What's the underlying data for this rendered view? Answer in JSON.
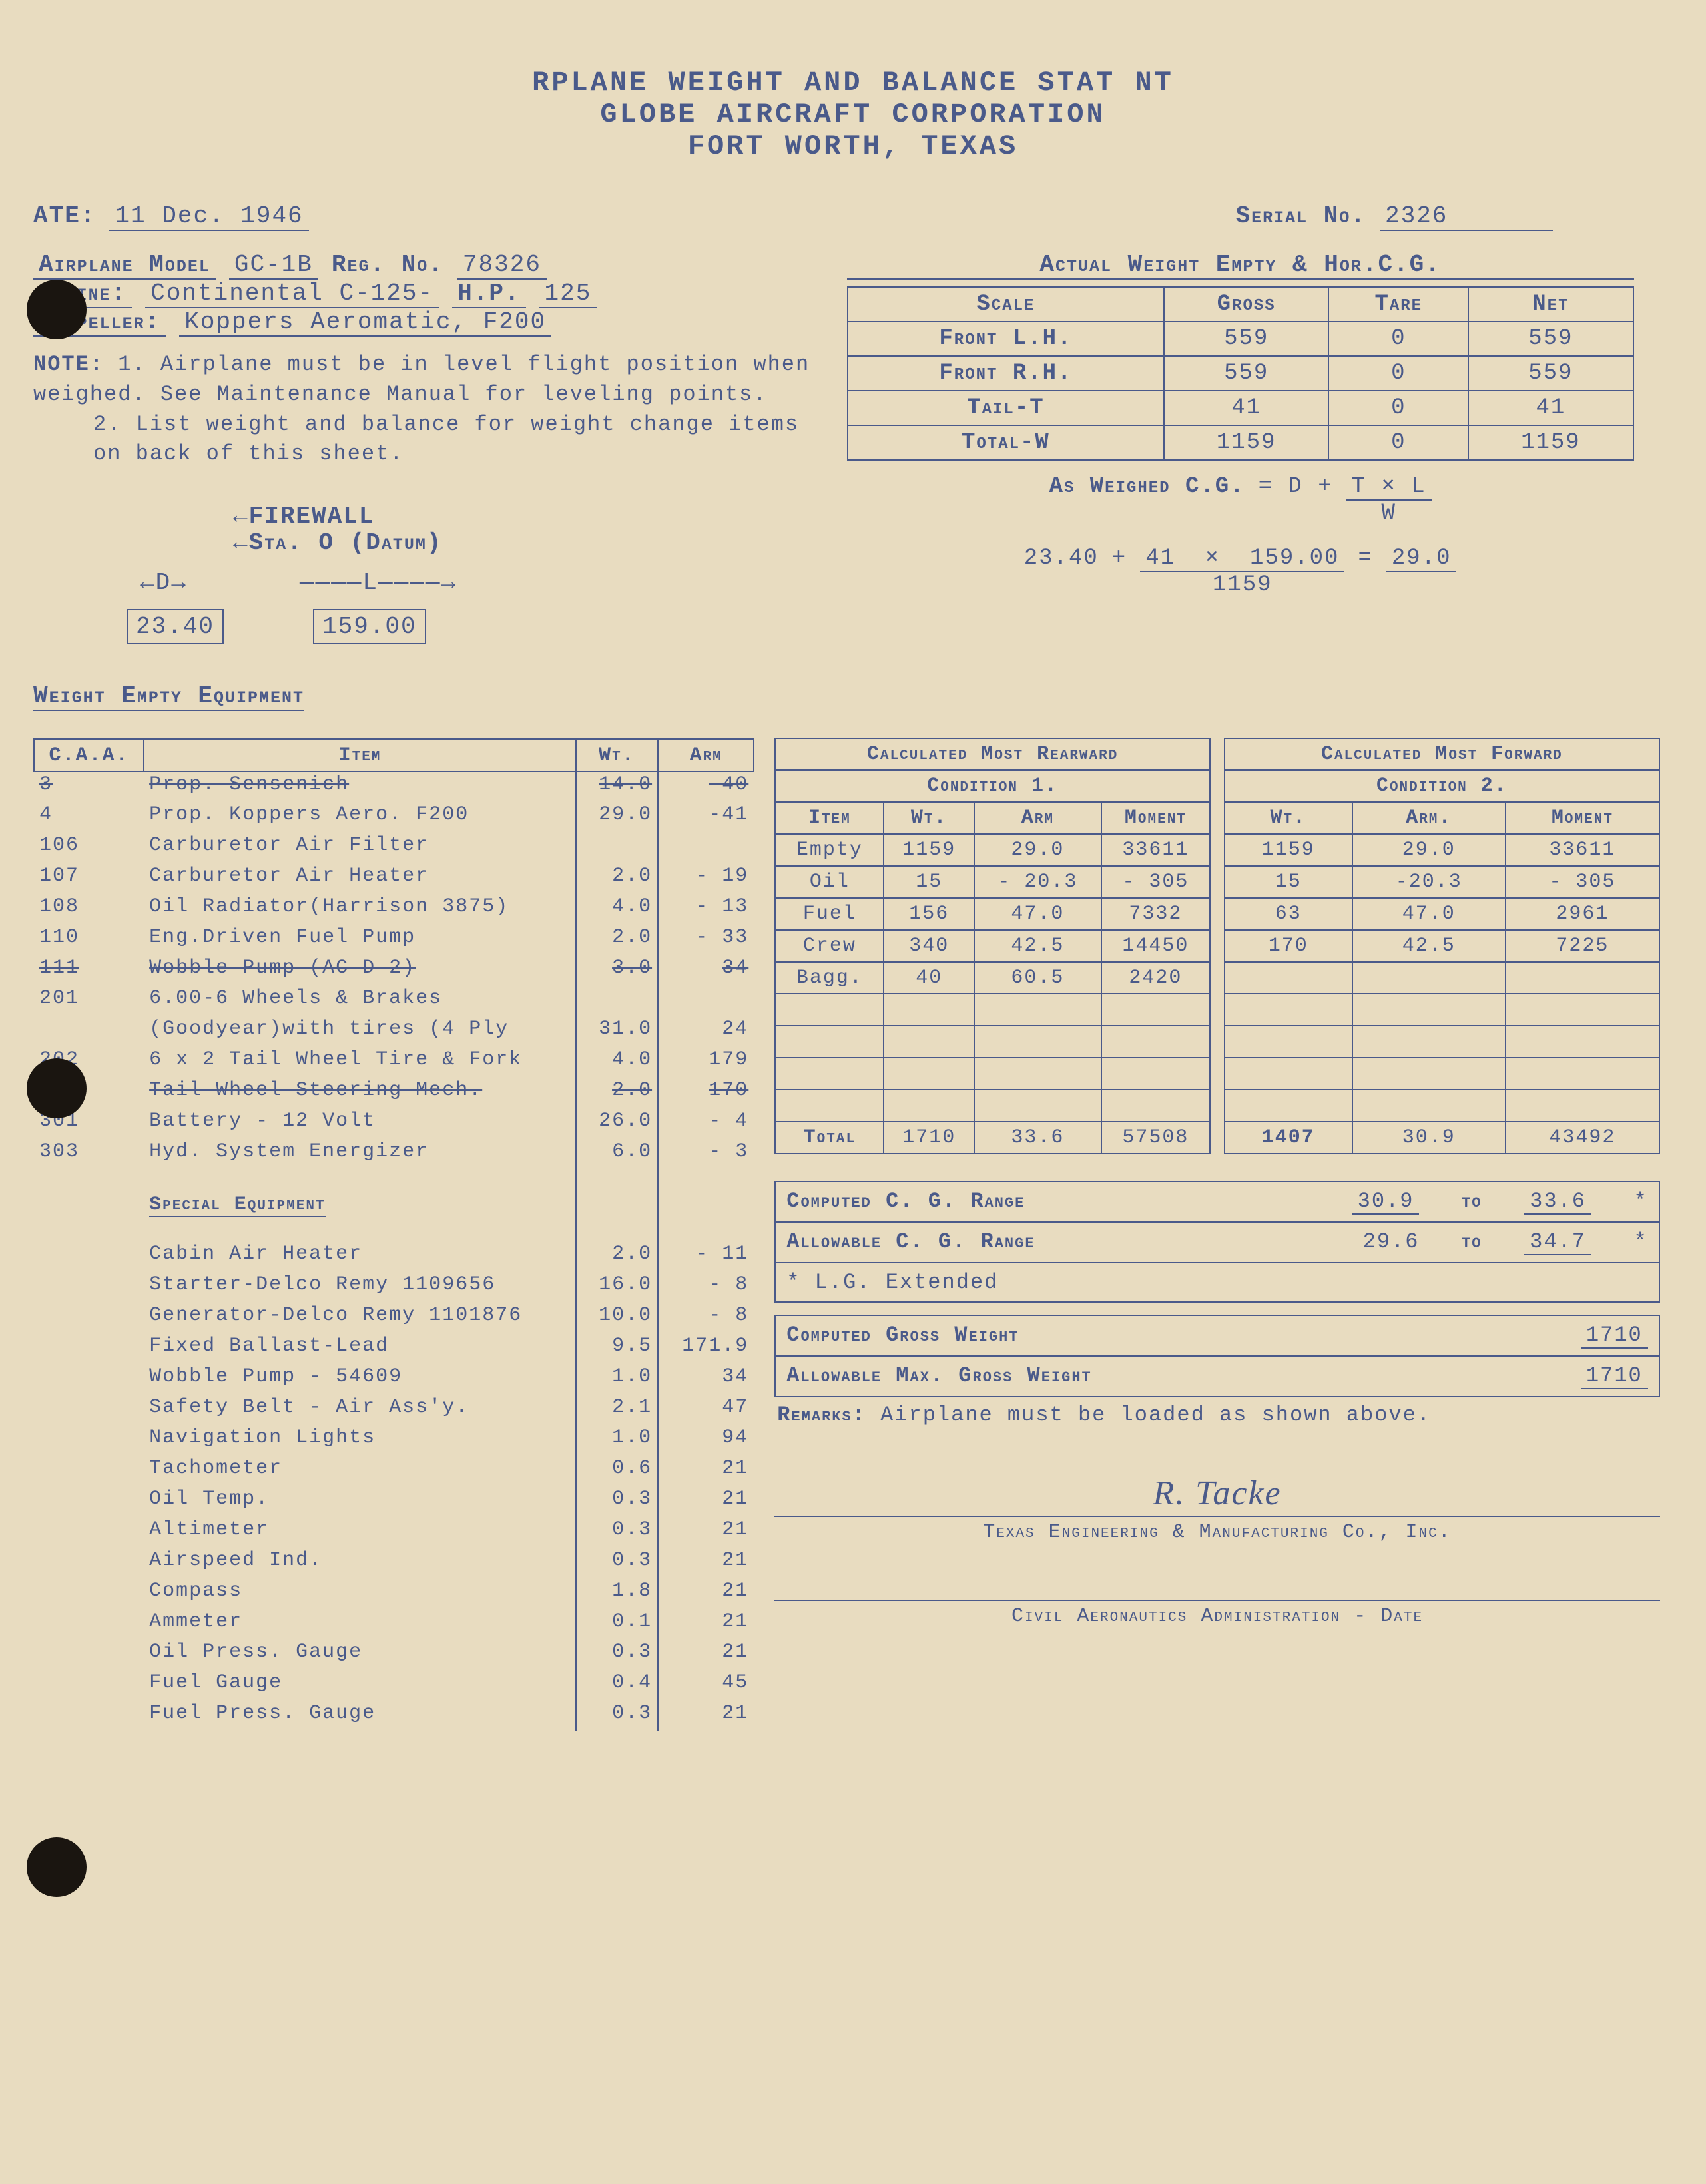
{
  "header": {
    "l1": "RPLANE WEIGHT AND BALANCE STAT   NT",
    "l2": "GLOBE AIRCRAFT CORPORATION",
    "l3": "FORT WORTH, TEXAS"
  },
  "top": {
    "date_label": "ATE:",
    "date_val": "11 Dec. 1946",
    "serial_label": "Serial No.",
    "serial_val": "2326",
    "model_label": "Airplane Model",
    "model_val": "GC-1B",
    "reg_label": "Reg. No.",
    "reg_val": "78326",
    "engine_label": "Engine:",
    "engine_val": "Continental C-125-",
    "hp_label": "H.P.",
    "hp_val": "125",
    "prop_label": "Propeller:",
    "prop_val": "Koppers Aeromatic, F200"
  },
  "notes": {
    "hdr": "NOTE:",
    "n1": "1. Airplane must be in level flight position when weighed. See Maintenance Manual for leveling points.",
    "n2": "2. List weight and balance for weight change items on back of this sheet."
  },
  "diagram": {
    "firewall": "FIREWALL",
    "datum": "Sta. O (Datum)",
    "d_label": "D",
    "l_label": "L",
    "d_val": "23.40",
    "l_val": "159.00"
  },
  "weight_table": {
    "title": "Actual Weight Empty & Hor.C.G.",
    "cols": [
      "Scale",
      "Gross",
      "Tare",
      "Net"
    ],
    "rows": [
      [
        "Front L.H.",
        "559",
        "0",
        "559"
      ],
      [
        "Front R.H.",
        "559",
        "0",
        "559"
      ],
      [
        "Tail-T",
        "41",
        "0",
        "41"
      ],
      [
        "Total-W",
        "1159",
        "0",
        "1159"
      ]
    ]
  },
  "cg_formula": {
    "label": "As Weighed C.G.",
    "eq": "= D +",
    "num": "T × L",
    "den": "W",
    "calc_d": "23.40",
    "calc_t": "41",
    "calc_l": "159.00",
    "calc_w": "1159",
    "result": "29.0"
  },
  "equip_title": "Weight Empty Equipment",
  "equip_cols": {
    "caa": "C.A.A.",
    "item": "Item",
    "wt": "Wt.",
    "arm": "Arm"
  },
  "equip": [
    {
      "caa": "3",
      "item": "Prop. Sensenich",
      "wt": "14.0",
      "arm": "-40",
      "struck": true
    },
    {
      "caa": "4",
      "item": "Prop. Koppers Aero. F200",
      "wt": "29.0",
      "arm": "-41"
    },
    {
      "caa": "106",
      "item": "Carburetor Air Filter",
      "wt": "",
      "arm": ""
    },
    {
      "caa": "107",
      "item": "Carburetor Air Heater",
      "wt": "2.0",
      "arm": "- 19"
    },
    {
      "caa": "108",
      "item": "Oil Radiator(Harrison 3875)",
      "wt": "4.0",
      "arm": "- 13"
    },
    {
      "caa": "110",
      "item": "Eng.Driven Fuel Pump",
      "wt": "2.0",
      "arm": "- 33"
    },
    {
      "caa": "111",
      "item": "Wobble Pump (AC-D-2)",
      "wt": "3.0",
      "arm": "34",
      "struck": true
    },
    {
      "caa": "201",
      "item": "6.00-6 Wheels & Brakes",
      "wt": "",
      "arm": ""
    },
    {
      "caa": "",
      "item": "(Goodyear)with tires (4 Ply",
      "wt": "31.0",
      "arm": "24"
    },
    {
      "caa": "202",
      "item": "6 x 2 Tail Wheel Tire & Fork",
      "wt": "4.0",
      "arm": "179"
    },
    {
      "caa": "203",
      "item": "Tail Wheel Steering Mech.",
      "wt": "2.0",
      "arm": "170",
      "struck": true
    },
    {
      "caa": "301",
      "item": "Battery - 12 Volt",
      "wt": "26.0",
      "arm": "- 4"
    },
    {
      "caa": "303",
      "item": "Hyd. System Energizer",
      "wt": "6.0",
      "arm": "- 3"
    }
  ],
  "special_title": "Special Equipment",
  "special": [
    {
      "item": "Cabin Air Heater",
      "wt": "2.0",
      "arm": "- 11"
    },
    {
      "item": "Starter-Delco Remy 1109656",
      "wt": "16.0",
      "arm": "- 8"
    },
    {
      "item": "Generator-Delco Remy 1101876",
      "wt": "10.0",
      "arm": "- 8"
    },
    {
      "item": "Fixed Ballast-Lead",
      "wt": "9.5",
      "arm": "171.9"
    },
    {
      "item": "Wobble Pump - 54609",
      "wt": "1.0",
      "arm": "34"
    },
    {
      "item": "Safety Belt - Air Ass'y.",
      "wt": "2.1",
      "arm": "47"
    },
    {
      "item": "Navigation Lights",
      "wt": "1.0",
      "arm": "94"
    },
    {
      "item": "Tachometer",
      "wt": "0.6",
      "arm": "21"
    },
    {
      "item": "Oil Temp.",
      "wt": "0.3",
      "arm": "21"
    },
    {
      "item": "Altimeter",
      "wt": "0.3",
      "arm": "21"
    },
    {
      "item": "Airspeed Ind.",
      "wt": "0.3",
      "arm": "21"
    },
    {
      "item": "Compass",
      "wt": "1.8",
      "arm": "21"
    },
    {
      "item": "Ammeter",
      "wt": "0.1",
      "arm": "21"
    },
    {
      "item": "Oil Press. Gauge",
      "wt": "0.3",
      "arm": "21"
    },
    {
      "item": "Fuel Gauge",
      "wt": "0.4",
      "arm": "45"
    },
    {
      "item": "Fuel Press. Gauge",
      "wt": "0.3",
      "arm": "21"
    }
  ],
  "calc": {
    "rear_title": "Calculated Most Rearward",
    "fwd_title": "Calculated Most Forward",
    "cond1": "Condition 1.",
    "cond2": "Condition 2.",
    "cols_rear": [
      "Item",
      "Wt.",
      "Arm",
      "Moment"
    ],
    "cols_fwd": [
      "Wt.",
      "Arm.",
      "Moment"
    ],
    "rows_rear": [
      [
        "Empty",
        "1159",
        "29.0",
        "33611"
      ],
      [
        "Oil",
        "15",
        "- 20.3",
        "- 305"
      ],
      [
        "Fuel",
        "156",
        "47.0",
        "7332"
      ],
      [
        "Crew",
        "340",
        "42.5",
        "14450"
      ],
      [
        "Bagg.",
        "40",
        "60.5",
        "2420"
      ],
      [
        "",
        "",
        "",
        ""
      ],
      [
        "",
        "",
        "",
        ""
      ],
      [
        "",
        "",
        "",
        ""
      ],
      [
        "",
        "",
        "",
        ""
      ]
    ],
    "rows_fwd": [
      [
        "1159",
        "29.0",
        "33611"
      ],
      [
        "15",
        "-20.3",
        "- 305"
      ],
      [
        "63",
        "47.0",
        "2961"
      ],
      [
        "170",
        "42.5",
        "7225"
      ],
      [
        "",
        "",
        ""
      ],
      [
        "",
        "",
        ""
      ],
      [
        "",
        "",
        ""
      ],
      [
        "",
        "",
        ""
      ],
      [
        "",
        "",
        ""
      ]
    ],
    "total_rear": [
      "Total",
      "1710",
      "33.6",
      "57508"
    ],
    "total_fwd": [
      "1407",
      "30.9",
      "43492"
    ]
  },
  "summary": {
    "cg_range_label": "Computed C. G. Range",
    "cg_from": "30.9",
    "cg_to_label": "to",
    "cg_to": "33.6",
    "ast": "*",
    "allow_cg_label": "Allowable C. G. Range",
    "allow_from": "29.6",
    "allow_to": "34.7",
    "lg_note": "* L.G. Extended",
    "gw_label": "Computed Gross Weight",
    "gw": "1710",
    "max_label": "Allowable Max. Gross Weight",
    "max": "1710",
    "remarks_label": "Remarks:",
    "remarks": "Airplane must be loaded as shown above."
  },
  "sig": {
    "name": "R. Tacke",
    "co": "Texas Engineering & Manufacturing Co., Inc.",
    "caa": "Civil Aeronautics Administration - Date"
  }
}
